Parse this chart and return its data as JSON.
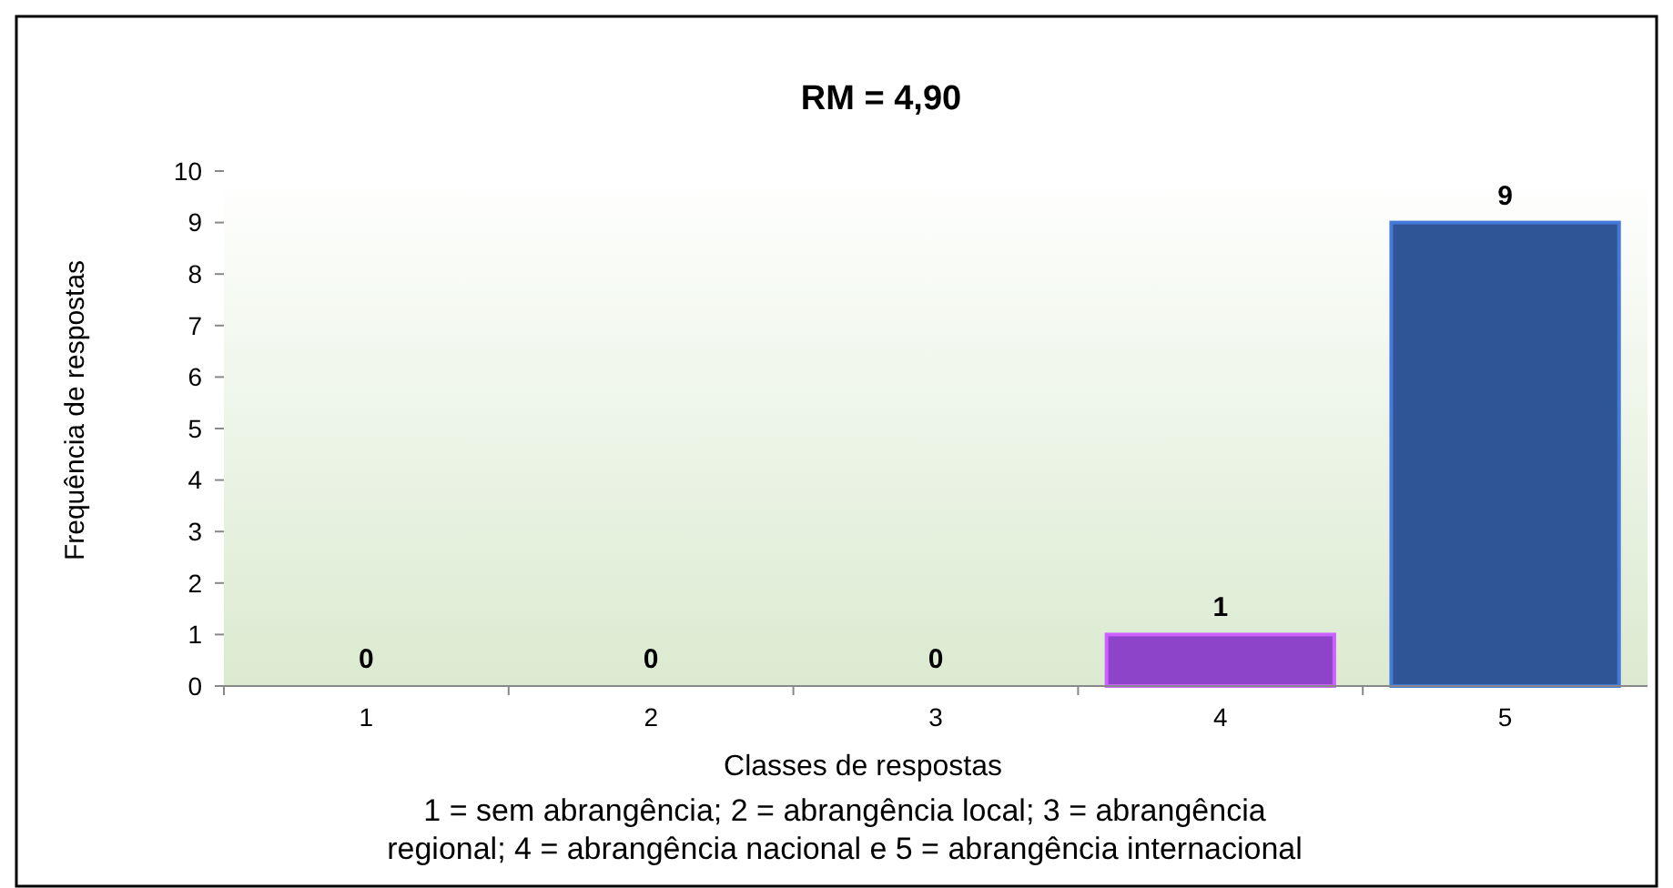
{
  "chart_data": {
    "type": "bar",
    "title": "RM = 4,90",
    "categories": [
      "1",
      "2",
      "3",
      "4",
      "5"
    ],
    "values": [
      0,
      0,
      0,
      1,
      9
    ],
    "colors": [
      "#2f5597",
      "#2f5597",
      "#2f5597",
      "#8e44c9",
      "#2f5597"
    ],
    "xlabel": "Classes de respostas",
    "ylabel": "Frequência de respostas",
    "ylim": [
      0,
      10
    ],
    "yticks": [
      0,
      1,
      2,
      3,
      4,
      5,
      6,
      7,
      8,
      9,
      10
    ],
    "data_labels": true,
    "annotations": [
      "1 = sem abrangência; 2 = abrangência local; 3 = abrangência regional; 4 = abrangência nacional e 5 = abrangência internacional"
    ]
  }
}
